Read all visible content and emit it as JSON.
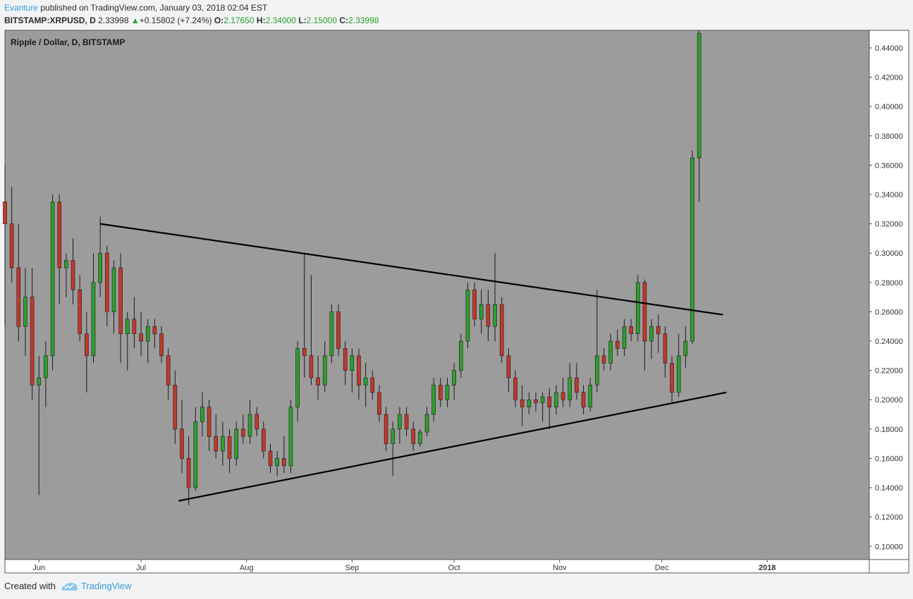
{
  "header": {
    "author": "Evanture",
    "published_text": " published on TradingView.com, January 03, 2018 02:04 EST",
    "symbol": "BITSTAMP:XRPUSD, D",
    "last": "2.33998",
    "change": "+0.15802 (+7.24%)",
    "o_label": "O:",
    "o_val": "2.17650",
    "h_label": "H:",
    "h_val": "2.34000",
    "l_label": "L:",
    "l_val": "2.15000",
    "c_label": "C:",
    "c_val": "2.33998"
  },
  "footer": {
    "created_with": "Created with",
    "brand": "TradingView"
  },
  "colors": {
    "up": "#2e9e2e",
    "down": "#c0392b",
    "plot_bg": "#9c9c9c",
    "line": "#000000",
    "accent": "#3a9ad9"
  },
  "chart_data": {
    "type": "candlestick",
    "title": "Ripple / Dollar, D, BITSTAMP",
    "x_ticks": [
      "Jun",
      "Jul",
      "Aug",
      "Sep",
      "Oct",
      "Nov",
      "Dec",
      "2018"
    ],
    "y_ticks": [
      "0.10000",
      "0.12000",
      "0.14000",
      "0.16000",
      "0.18000",
      "0.20000",
      "0.22000",
      "0.24000",
      "0.26000",
      "0.28000",
      "0.30000",
      "0.32000",
      "0.34000",
      "0.36000",
      "0.38000",
      "0.40000",
      "0.42000",
      "0.44000"
    ],
    "ylim": [
      0.091,
      0.452
    ],
    "x_range": [
      "2017-05-22",
      "2018-01-31"
    ],
    "grid": false,
    "trendlines": [
      {
        "start": [
          "2017-06-19",
          0.32
        ],
        "end": [
          "2017-12-19",
          0.258
        ]
      },
      {
        "start": [
          "2017-07-12",
          0.131
        ],
        "end": [
          "2017-12-20",
          0.205
        ]
      }
    ],
    "candles": [
      {
        "t": "2017-05-22",
        "o": 0.335,
        "h": 0.36,
        "l": 0.25,
        "c": 0.32
      },
      {
        "t": "2017-05-24",
        "o": 0.32,
        "h": 0.345,
        "l": 0.28,
        "c": 0.29
      },
      {
        "t": "2017-05-26",
        "o": 0.29,
        "h": 0.32,
        "l": 0.24,
        "c": 0.25
      },
      {
        "t": "2017-05-28",
        "o": 0.25,
        "h": 0.29,
        "l": 0.23,
        "c": 0.27
      },
      {
        "t": "2017-05-30",
        "o": 0.27,
        "h": 0.29,
        "l": 0.2,
        "c": 0.21
      },
      {
        "t": "2017-06-01",
        "o": 0.21,
        "h": 0.23,
        "l": 0.135,
        "c": 0.215
      },
      {
        "t": "2017-06-03",
        "o": 0.215,
        "h": 0.24,
        "l": 0.195,
        "c": 0.23
      },
      {
        "t": "2017-06-05",
        "o": 0.23,
        "h": 0.34,
        "l": 0.22,
        "c": 0.335
      },
      {
        "t": "2017-06-07",
        "o": 0.335,
        "h": 0.34,
        "l": 0.265,
        "c": 0.29
      },
      {
        "t": "2017-06-09",
        "o": 0.29,
        "h": 0.3,
        "l": 0.27,
        "c": 0.295
      },
      {
        "t": "2017-06-11",
        "o": 0.295,
        "h": 0.31,
        "l": 0.265,
        "c": 0.275
      },
      {
        "t": "2017-06-13",
        "o": 0.275,
        "h": 0.285,
        "l": 0.24,
        "c": 0.245
      },
      {
        "t": "2017-06-15",
        "o": 0.245,
        "h": 0.26,
        "l": 0.205,
        "c": 0.23
      },
      {
        "t": "2017-06-17",
        "o": 0.23,
        "h": 0.3,
        "l": 0.225,
        "c": 0.28
      },
      {
        "t": "2017-06-19",
        "o": 0.28,
        "h": 0.325,
        "l": 0.27,
        "c": 0.3
      },
      {
        "t": "2017-06-21",
        "o": 0.3,
        "h": 0.305,
        "l": 0.25,
        "c": 0.26
      },
      {
        "t": "2017-06-23",
        "o": 0.26,
        "h": 0.295,
        "l": 0.245,
        "c": 0.29
      },
      {
        "t": "2017-06-25",
        "o": 0.29,
        "h": 0.3,
        "l": 0.225,
        "c": 0.245
      },
      {
        "t": "2017-06-27",
        "o": 0.245,
        "h": 0.26,
        "l": 0.22,
        "c": 0.255
      },
      {
        "t": "2017-06-29",
        "o": 0.255,
        "h": 0.27,
        "l": 0.235,
        "c": 0.245
      },
      {
        "t": "2017-07-01",
        "o": 0.245,
        "h": 0.26,
        "l": 0.23,
        "c": 0.24
      },
      {
        "t": "2017-07-03",
        "o": 0.24,
        "h": 0.255,
        "l": 0.225,
        "c": 0.25
      },
      {
        "t": "2017-07-05",
        "o": 0.25,
        "h": 0.255,
        "l": 0.235,
        "c": 0.245
      },
      {
        "t": "2017-07-07",
        "o": 0.245,
        "h": 0.25,
        "l": 0.225,
        "c": 0.23
      },
      {
        "t": "2017-07-09",
        "o": 0.23,
        "h": 0.235,
        "l": 0.2,
        "c": 0.21
      },
      {
        "t": "2017-07-11",
        "o": 0.21,
        "h": 0.22,
        "l": 0.17,
        "c": 0.18
      },
      {
        "t": "2017-07-13",
        "o": 0.18,
        "h": 0.2,
        "l": 0.15,
        "c": 0.16
      },
      {
        "t": "2017-07-15",
        "o": 0.16,
        "h": 0.175,
        "l": 0.128,
        "c": 0.14
      },
      {
        "t": "2017-07-17",
        "o": 0.14,
        "h": 0.195,
        "l": 0.138,
        "c": 0.185
      },
      {
        "t": "2017-07-19",
        "o": 0.185,
        "h": 0.205,
        "l": 0.175,
        "c": 0.195
      },
      {
        "t": "2017-07-21",
        "o": 0.195,
        "h": 0.2,
        "l": 0.165,
        "c": 0.175
      },
      {
        "t": "2017-07-23",
        "o": 0.175,
        "h": 0.19,
        "l": 0.16,
        "c": 0.165
      },
      {
        "t": "2017-07-25",
        "o": 0.165,
        "h": 0.185,
        "l": 0.155,
        "c": 0.175
      },
      {
        "t": "2017-07-27",
        "o": 0.175,
        "h": 0.18,
        "l": 0.15,
        "c": 0.16
      },
      {
        "t": "2017-07-29",
        "o": 0.16,
        "h": 0.185,
        "l": 0.155,
        "c": 0.18
      },
      {
        "t": "2017-07-31",
        "o": 0.18,
        "h": 0.19,
        "l": 0.17,
        "c": 0.175
      },
      {
        "t": "2017-08-02",
        "o": 0.175,
        "h": 0.2,
        "l": 0.17,
        "c": 0.19
      },
      {
        "t": "2017-08-04",
        "o": 0.19,
        "h": 0.195,
        "l": 0.175,
        "c": 0.18
      },
      {
        "t": "2017-08-06",
        "o": 0.18,
        "h": 0.185,
        "l": 0.16,
        "c": 0.165
      },
      {
        "t": "2017-08-08",
        "o": 0.165,
        "h": 0.17,
        "l": 0.15,
        "c": 0.155
      },
      {
        "t": "2017-08-10",
        "o": 0.155,
        "h": 0.165,
        "l": 0.148,
        "c": 0.16
      },
      {
        "t": "2017-08-12",
        "o": 0.16,
        "h": 0.175,
        "l": 0.15,
        "c": 0.155
      },
      {
        "t": "2017-08-14",
        "o": 0.155,
        "h": 0.2,
        "l": 0.15,
        "c": 0.195
      },
      {
        "t": "2017-08-16",
        "o": 0.195,
        "h": 0.24,
        "l": 0.185,
        "c": 0.235
      },
      {
        "t": "2017-08-18",
        "o": 0.235,
        "h": 0.3,
        "l": 0.215,
        "c": 0.23
      },
      {
        "t": "2017-08-20",
        "o": 0.23,
        "h": 0.285,
        "l": 0.21,
        "c": 0.215
      },
      {
        "t": "2017-08-22",
        "o": 0.215,
        "h": 0.23,
        "l": 0.2,
        "c": 0.21
      },
      {
        "t": "2017-08-24",
        "o": 0.21,
        "h": 0.24,
        "l": 0.205,
        "c": 0.23
      },
      {
        "t": "2017-08-26",
        "o": 0.23,
        "h": 0.265,
        "l": 0.225,
        "c": 0.26
      },
      {
        "t": "2017-08-28",
        "o": 0.26,
        "h": 0.265,
        "l": 0.23,
        "c": 0.235
      },
      {
        "t": "2017-08-30",
        "o": 0.235,
        "h": 0.24,
        "l": 0.21,
        "c": 0.22
      },
      {
        "t": "2017-09-01",
        "o": 0.22,
        "h": 0.235,
        "l": 0.205,
        "c": 0.23
      },
      {
        "t": "2017-09-03",
        "o": 0.23,
        "h": 0.235,
        "l": 0.2,
        "c": 0.21
      },
      {
        "t": "2017-09-05",
        "o": 0.21,
        "h": 0.225,
        "l": 0.195,
        "c": 0.215
      },
      {
        "t": "2017-09-07",
        "o": 0.215,
        "h": 0.22,
        "l": 0.2,
        "c": 0.205
      },
      {
        "t": "2017-09-09",
        "o": 0.205,
        "h": 0.21,
        "l": 0.185,
        "c": 0.19
      },
      {
        "t": "2017-09-11",
        "o": 0.19,
        "h": 0.195,
        "l": 0.165,
        "c": 0.17
      },
      {
        "t": "2017-09-13",
        "o": 0.17,
        "h": 0.185,
        "l": 0.148,
        "c": 0.18
      },
      {
        "t": "2017-09-15",
        "o": 0.18,
        "h": 0.195,
        "l": 0.17,
        "c": 0.19
      },
      {
        "t": "2017-09-17",
        "o": 0.19,
        "h": 0.195,
        "l": 0.175,
        "c": 0.18
      },
      {
        "t": "2017-09-19",
        "o": 0.18,
        "h": 0.185,
        "l": 0.165,
        "c": 0.17
      },
      {
        "t": "2017-09-21",
        "o": 0.17,
        "h": 0.18,
        "l": 0.168,
        "c": 0.178
      },
      {
        "t": "2017-09-23",
        "o": 0.178,
        "h": 0.195,
        "l": 0.175,
        "c": 0.19
      },
      {
        "t": "2017-09-25",
        "o": 0.19,
        "h": 0.215,
        "l": 0.185,
        "c": 0.21
      },
      {
        "t": "2017-09-27",
        "o": 0.21,
        "h": 0.215,
        "l": 0.195,
        "c": 0.2
      },
      {
        "t": "2017-09-29",
        "o": 0.2,
        "h": 0.215,
        "l": 0.195,
        "c": 0.21
      },
      {
        "t": "2017-10-01",
        "o": 0.21,
        "h": 0.225,
        "l": 0.2,
        "c": 0.22
      },
      {
        "t": "2017-10-03",
        "o": 0.22,
        "h": 0.245,
        "l": 0.215,
        "c": 0.24
      },
      {
        "t": "2017-10-05",
        "o": 0.24,
        "h": 0.28,
        "l": 0.235,
        "c": 0.275
      },
      {
        "t": "2017-10-07",
        "o": 0.275,
        "h": 0.28,
        "l": 0.25,
        "c": 0.255
      },
      {
        "t": "2017-10-09",
        "o": 0.255,
        "h": 0.275,
        "l": 0.245,
        "c": 0.265
      },
      {
        "t": "2017-10-11",
        "o": 0.265,
        "h": 0.275,
        "l": 0.24,
        "c": 0.25
      },
      {
        "t": "2017-10-13",
        "o": 0.25,
        "h": 0.3,
        "l": 0.24,
        "c": 0.265
      },
      {
        "t": "2017-10-15",
        "o": 0.265,
        "h": 0.27,
        "l": 0.225,
        "c": 0.23
      },
      {
        "t": "2017-10-17",
        "o": 0.23,
        "h": 0.235,
        "l": 0.205,
        "c": 0.215
      },
      {
        "t": "2017-10-19",
        "o": 0.215,
        "h": 0.22,
        "l": 0.195,
        "c": 0.2
      },
      {
        "t": "2017-10-21",
        "o": 0.2,
        "h": 0.21,
        "l": 0.182,
        "c": 0.195
      },
      {
        "t": "2017-10-23",
        "o": 0.195,
        "h": 0.205,
        "l": 0.19,
        "c": 0.2
      },
      {
        "t": "2017-10-25",
        "o": 0.2,
        "h": 0.205,
        "l": 0.192,
        "c": 0.198
      },
      {
        "t": "2017-10-27",
        "o": 0.198,
        "h": 0.205,
        "l": 0.185,
        "c": 0.202
      },
      {
        "t": "2017-10-29",
        "o": 0.202,
        "h": 0.208,
        "l": 0.18,
        "c": 0.195
      },
      {
        "t": "2017-10-31",
        "o": 0.195,
        "h": 0.21,
        "l": 0.19,
        "c": 0.205
      },
      {
        "t": "2017-11-02",
        "o": 0.205,
        "h": 0.215,
        "l": 0.195,
        "c": 0.2
      },
      {
        "t": "2017-11-04",
        "o": 0.2,
        "h": 0.225,
        "l": 0.195,
        "c": 0.215
      },
      {
        "t": "2017-11-06",
        "o": 0.215,
        "h": 0.225,
        "l": 0.2,
        "c": 0.205
      },
      {
        "t": "2017-11-08",
        "o": 0.205,
        "h": 0.21,
        "l": 0.19,
        "c": 0.195
      },
      {
        "t": "2017-11-10",
        "o": 0.195,
        "h": 0.215,
        "l": 0.192,
        "c": 0.21
      },
      {
        "t": "2017-11-12",
        "o": 0.21,
        "h": 0.275,
        "l": 0.205,
        "c": 0.23
      },
      {
        "t": "2017-11-14",
        "o": 0.23,
        "h": 0.235,
        "l": 0.22,
        "c": 0.225
      },
      {
        "t": "2017-11-16",
        "o": 0.225,
        "h": 0.245,
        "l": 0.22,
        "c": 0.24
      },
      {
        "t": "2017-11-18",
        "o": 0.24,
        "h": 0.248,
        "l": 0.23,
        "c": 0.235
      },
      {
        "t": "2017-11-20",
        "o": 0.235,
        "h": 0.255,
        "l": 0.23,
        "c": 0.25
      },
      {
        "t": "2017-11-22",
        "o": 0.25,
        "h": 0.255,
        "l": 0.24,
        "c": 0.245
      },
      {
        "t": "2017-11-24",
        "o": 0.245,
        "h": 0.285,
        "l": 0.24,
        "c": 0.28
      },
      {
        "t": "2017-11-26",
        "o": 0.28,
        "h": 0.282,
        "l": 0.22,
        "c": 0.24
      },
      {
        "t": "2017-11-28",
        "o": 0.24,
        "h": 0.255,
        "l": 0.228,
        "c": 0.25
      },
      {
        "t": "2017-11-30",
        "o": 0.25,
        "h": 0.258,
        "l": 0.232,
        "c": 0.245
      },
      {
        "t": "2017-12-02",
        "o": 0.245,
        "h": 0.25,
        "l": 0.215,
        "c": 0.225
      },
      {
        "t": "2017-12-04",
        "o": 0.225,
        "h": 0.23,
        "l": 0.198,
        "c": 0.205
      },
      {
        "t": "2017-12-06",
        "o": 0.205,
        "h": 0.245,
        "l": 0.202,
        "c": 0.23
      },
      {
        "t": "2017-12-08",
        "o": 0.23,
        "h": 0.25,
        "l": 0.222,
        "c": 0.24
      },
      {
        "t": "2017-12-10",
        "o": 0.24,
        "h": 0.37,
        "l": 0.238,
        "c": 0.365
      },
      {
        "t": "2017-12-12",
        "o": 0.365,
        "h": 0.452,
        "l": 0.335,
        "c": 0.45
      }
    ]
  }
}
